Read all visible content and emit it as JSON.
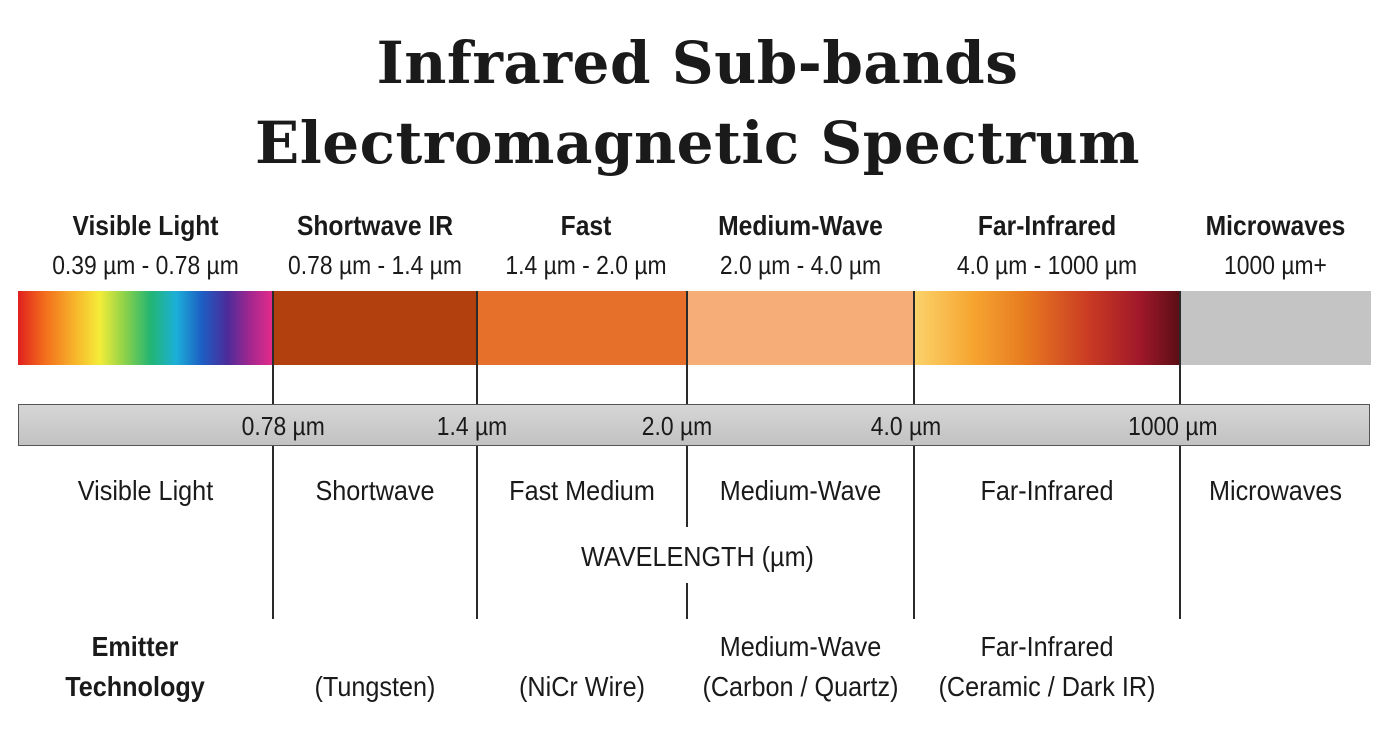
{
  "title": {
    "line1": "Infrared Sub-bands",
    "line2": "Electromagnetic Spectrum"
  },
  "bands": [
    {
      "name": "Visible Light",
      "range": "0.39 µm - 0.78 µm",
      "color": "#e02020"
    },
    {
      "name": "Shortwave IR",
      "range": "0.78 µm - 1.4 µm",
      "color": "#b2400e"
    },
    {
      "name": "Fast",
      "range": "1.4 µm - 2.0 µm",
      "color": "#e66f2a"
    },
    {
      "name": "Medium-Wave",
      "range": "2.0 µm - 4.0 µm",
      "color": "#f7ad78"
    },
    {
      "name": "Far-Infrared",
      "range": "4.0 µm - 1000 µm",
      "color": "#c93a23"
    },
    {
      "name": "Microwaves",
      "range": "1000 µm+",
      "color": "#c4c4c4"
    }
  ],
  "axis": {
    "ticks": [
      "0.78 µm",
      "1.4 µm",
      "2.0 µm",
      "4.0 µm",
      "1000 µm"
    ],
    "title": "WAVELENGTH (µm)"
  },
  "region_labels": [
    "Visible Light",
    "Shortwave",
    "Fast Medium",
    "Medium-Wave",
    "Far-Infrared",
    "Microwaves"
  ],
  "emitter": {
    "label_line1": "Emitter",
    "label_line2": "Technology",
    "items": [
      {
        "line1": "",
        "line2": "(Tungsten)"
      },
      {
        "line1": "",
        "line2": "(NiCr Wire)"
      },
      {
        "line1": "Medium-Wave",
        "line2": "(Carbon / Quartz)"
      },
      {
        "line1": "Far-Infrared",
        "line2": "(Ceramic / Dark IR)"
      }
    ]
  }
}
